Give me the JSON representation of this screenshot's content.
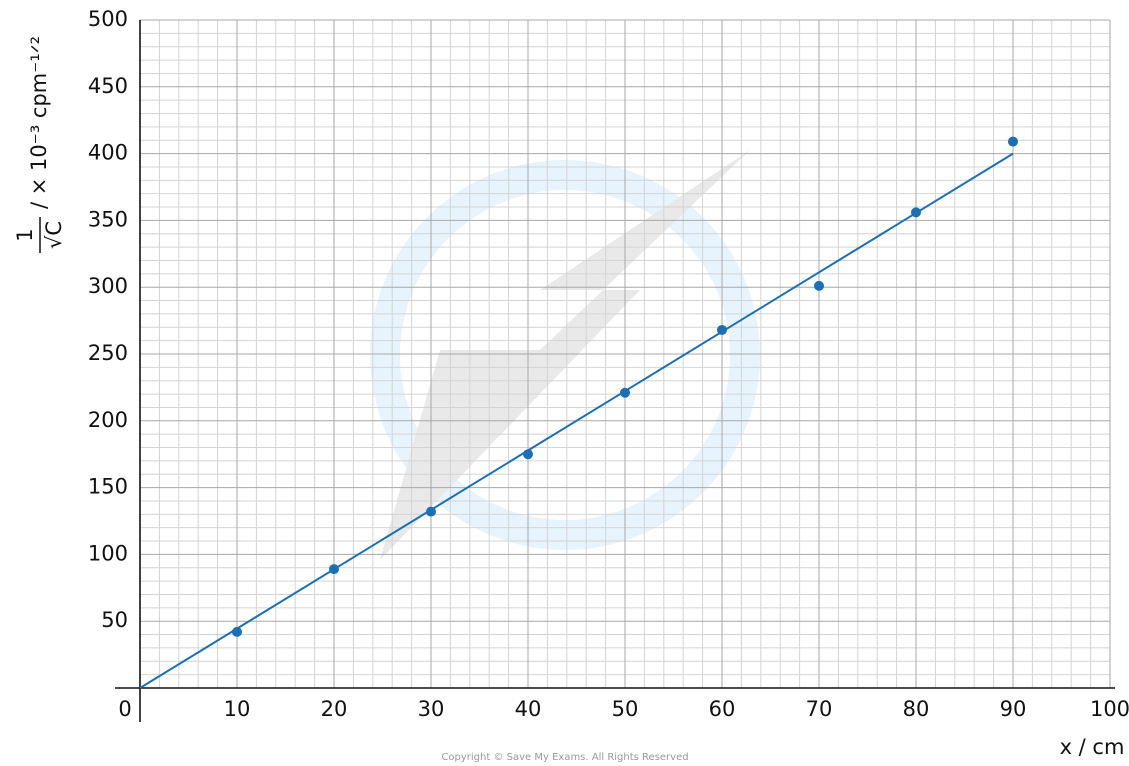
{
  "chart_data": {
    "type": "scatter",
    "x_label": "x / cm",
    "y_label": {
      "numerator": "1",
      "denominator": "√C",
      "unit": "/ × 10⁻³ cpm⁻¹ᐟ²"
    },
    "xlim": [
      0,
      100
    ],
    "xticks": [
      0,
      10,
      20,
      30,
      40,
      50,
      60,
      70,
      80,
      90,
      100
    ],
    "ylim": [
      0,
      500
    ],
    "yticks": [
      50,
      100,
      150,
      200,
      250,
      300,
      350,
      400,
      450,
      500
    ],
    "grid": true,
    "series": [
      {
        "type": "scatter",
        "color": "#1a6fb5",
        "x": [
          10,
          20,
          30,
          40,
          50,
          60,
          70,
          80,
          90
        ],
        "values": [
          42,
          89,
          132,
          175,
          221,
          268,
          301,
          356,
          409
        ]
      },
      {
        "type": "line",
        "color": "#1a6fb5",
        "x": [
          0,
          90
        ],
        "values": [
          0,
          400
        ]
      }
    ],
    "copyright": "Copyright © Save My Exams. All Rights Reserved"
  }
}
